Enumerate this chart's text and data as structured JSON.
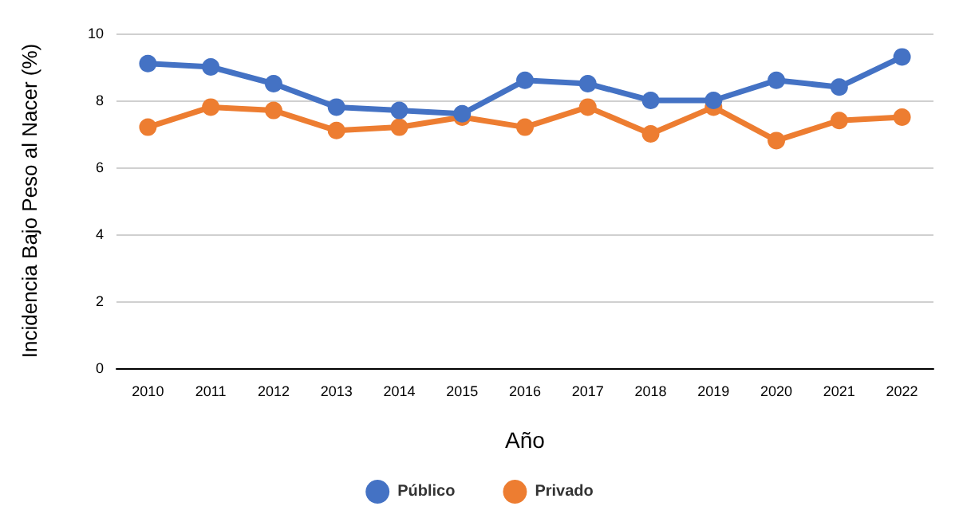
{
  "chart_data": {
    "type": "line",
    "xlabel": "Año",
    "ylabel": "Incidencia Bajo Peso al Nacer (%)",
    "categories": [
      "2010",
      "2011",
      "2012",
      "2013",
      "2014",
      "2015",
      "2016",
      "2017",
      "2018",
      "2019",
      "2020",
      "2021",
      "2022"
    ],
    "series": [
      {
        "name": "Público",
        "color": "#4472c4",
        "values": [
          9.1,
          9.0,
          8.5,
          7.8,
          7.7,
          7.6,
          8.6,
          8.5,
          8.0,
          8.0,
          8.6,
          8.4,
          9.3
        ]
      },
      {
        "name": "Privado",
        "color": "#ed7d31",
        "values": [
          7.2,
          7.8,
          7.7,
          7.1,
          7.2,
          7.5,
          7.2,
          7.8,
          7.0,
          7.8,
          6.8,
          7.4,
          7.5
        ]
      }
    ],
    "ylim": [
      0,
      10
    ],
    "yticks": [
      0,
      2,
      4,
      6,
      8,
      10
    ],
    "grid": "y",
    "legend": "bottom",
    "marker": "circle",
    "line_style": "solid"
  }
}
